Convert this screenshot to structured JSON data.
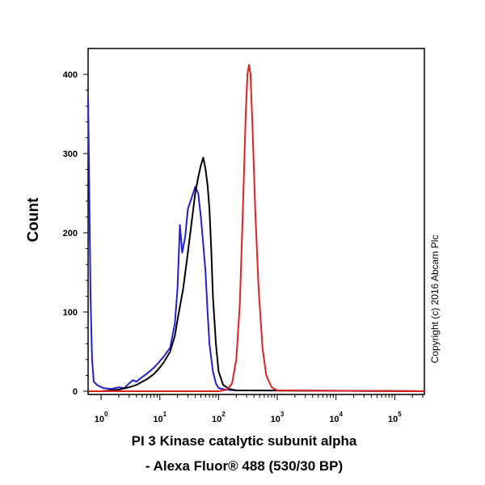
{
  "chart_data": {
    "type": "line",
    "xlabel_line1": "PI 3 Kinase catalytic subunit alpha",
    "xlabel_line2": "- Alexa Fluor® 488 (530/30 BP)",
    "ylabel": "Count",
    "x_scale": "log",
    "xlim": [
      0.6,
      320000
    ],
    "ylim": [
      0,
      420
    ],
    "y_ticks": [
      0,
      100,
      200,
      300,
      400
    ],
    "x_ticks": [
      {
        "value": 1,
        "base": "10",
        "exp": "0"
      },
      {
        "value": 10,
        "base": "10",
        "exp": "1"
      },
      {
        "value": 100,
        "base": "10",
        "exp": "2"
      },
      {
        "value": 1000,
        "base": "10",
        "exp": "3"
      },
      {
        "value": 10000,
        "base": "10",
        "exp": "4"
      },
      {
        "value": 100000,
        "base": "10",
        "exp": "5"
      }
    ],
    "copyright": "Copyright (c) 2016 Abcam Plc",
    "series": [
      {
        "color": "#2222cc",
        "points": [
          [
            0.6,
            370
          ],
          [
            0.63,
            250
          ],
          [
            0.66,
            120
          ],
          [
            0.7,
            40
          ],
          [
            0.75,
            12
          ],
          [
            0.85,
            8
          ],
          [
            0.95,
            6
          ],
          [
            1.1,
            4
          ],
          [
            1.5,
            3
          ],
          [
            2,
            5
          ],
          [
            2.5,
            4
          ],
          [
            3,
            10
          ],
          [
            3.5,
            14
          ],
          [
            4,
            12
          ],
          [
            5,
            18
          ],
          [
            6,
            22
          ],
          [
            8,
            30
          ],
          [
            10,
            38
          ],
          [
            12,
            45
          ],
          [
            15,
            55
          ],
          [
            18,
            85
          ],
          [
            20,
            130
          ],
          [
            22,
            210
          ],
          [
            24,
            175
          ],
          [
            27,
            195
          ],
          [
            30,
            230
          ],
          [
            35,
            245
          ],
          [
            40,
            258
          ],
          [
            45,
            250
          ],
          [
            50,
            220
          ],
          [
            55,
            185
          ],
          [
            60,
            150
          ],
          [
            65,
            100
          ],
          [
            70,
            60
          ],
          [
            80,
            25
          ],
          [
            90,
            10
          ],
          [
            100,
            4
          ],
          [
            130,
            2
          ],
          [
            200,
            1
          ],
          [
            1000,
            1
          ],
          [
            320000,
            0
          ]
        ]
      },
      {
        "color": "#000000",
        "points": [
          [
            0.6,
            0
          ],
          [
            1,
            0
          ],
          [
            2,
            2
          ],
          [
            3,
            5
          ],
          [
            4,
            8
          ],
          [
            5,
            12
          ],
          [
            6,
            15
          ],
          [
            8,
            22
          ],
          [
            10,
            30
          ],
          [
            12,
            38
          ],
          [
            15,
            50
          ],
          [
            18,
            70
          ],
          [
            20,
            90
          ],
          [
            25,
            130
          ],
          [
            30,
            175
          ],
          [
            35,
            215
          ],
          [
            40,
            250
          ],
          [
            45,
            270
          ],
          [
            50,
            285
          ],
          [
            55,
            295
          ],
          [
            60,
            280
          ],
          [
            65,
            260
          ],
          [
            70,
            230
          ],
          [
            75,
            180
          ],
          [
            80,
            120
          ],
          [
            90,
            60
          ],
          [
            100,
            25
          ],
          [
            120,
            8
          ],
          [
            150,
            3
          ],
          [
            200,
            1
          ],
          [
            320000,
            0
          ]
        ]
      },
      {
        "color": "#dd2222",
        "points": [
          [
            0.6,
            0
          ],
          [
            100,
            0
          ],
          [
            140,
            2
          ],
          [
            170,
            10
          ],
          [
            200,
            40
          ],
          [
            230,
            110
          ],
          [
            260,
            230
          ],
          [
            290,
            350
          ],
          [
            310,
            400
          ],
          [
            330,
            412
          ],
          [
            350,
            400
          ],
          [
            380,
            330
          ],
          [
            420,
            230
          ],
          [
            480,
            130
          ],
          [
            560,
            55
          ],
          [
            650,
            20
          ],
          [
            800,
            5
          ],
          [
            1000,
            1
          ],
          [
            320000,
            0
          ]
        ]
      }
    ]
  }
}
